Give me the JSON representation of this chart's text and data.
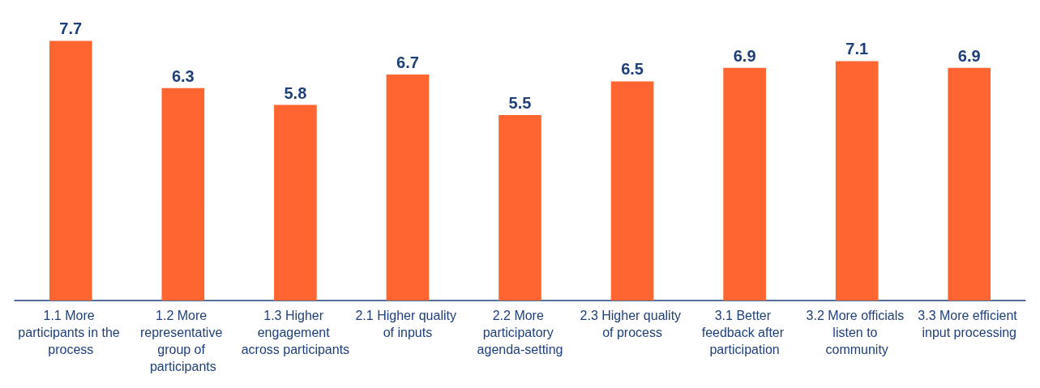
{
  "chart_data": {
    "type": "bar",
    "categories": [
      "1.1 More participants in the process",
      "1.2 More representative group of participants",
      "1.3 Higher engagement across participants",
      "2.1 Higher quality of inputs",
      "2.2 More participatory agenda-setting",
      "2.3 Higher quality of process",
      "3.1 Better feedback after participation",
      "3.2 More officials listen to community",
      "3.3 More efficient input processing"
    ],
    "values": [
      7.7,
      6.3,
      5.8,
      6.7,
      5.5,
      6.5,
      6.9,
      7.1,
      6.9
    ],
    "color": "#ff6530",
    "data_labels": true
  }
}
